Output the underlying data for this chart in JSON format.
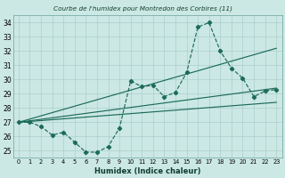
{
  "title": "Courbe de l'humidex pour Montredon des Corbires (11)",
  "xlabel": "Humidex (Indice chaleur)",
  "bg_color": "#cce8e4",
  "grid_color": "#aacfcb",
  "line_color": "#1c6b58",
  "xlim": [
    -0.5,
    23.5
  ],
  "ylim": [
    24.5,
    34.5
  ],
  "xticks": [
    0,
    1,
    2,
    3,
    4,
    5,
    6,
    7,
    8,
    9,
    10,
    11,
    12,
    13,
    14,
    15,
    16,
    17,
    18,
    19,
    20,
    21,
    22,
    23
  ],
  "yticks": [
    25,
    26,
    27,
    28,
    29,
    30,
    31,
    32,
    33,
    34
  ],
  "main_x": [
    0,
    1,
    2,
    3,
    4,
    5,
    6,
    7,
    8,
    9,
    10,
    11,
    12,
    13,
    14,
    15,
    16,
    17,
    18,
    19,
    20,
    21,
    22,
    23
  ],
  "main_y": [
    27.0,
    27.0,
    26.7,
    26.1,
    26.3,
    25.6,
    24.9,
    24.9,
    25.3,
    26.6,
    29.9,
    29.5,
    29.6,
    28.8,
    29.1,
    30.5,
    33.7,
    34.0,
    32.0,
    30.8,
    30.1,
    28.8,
    29.2,
    29.3
  ],
  "line_lower": {
    "x0": 0,
    "y0": 27.0,
    "x1": 23,
    "y1": 28.4
  },
  "line_mid": {
    "x0": 0,
    "y0": 27.0,
    "x1": 23,
    "y1": 29.4
  },
  "line_upper": {
    "x0": 0,
    "y0": 27.0,
    "x1": 23,
    "y1": 32.2
  }
}
